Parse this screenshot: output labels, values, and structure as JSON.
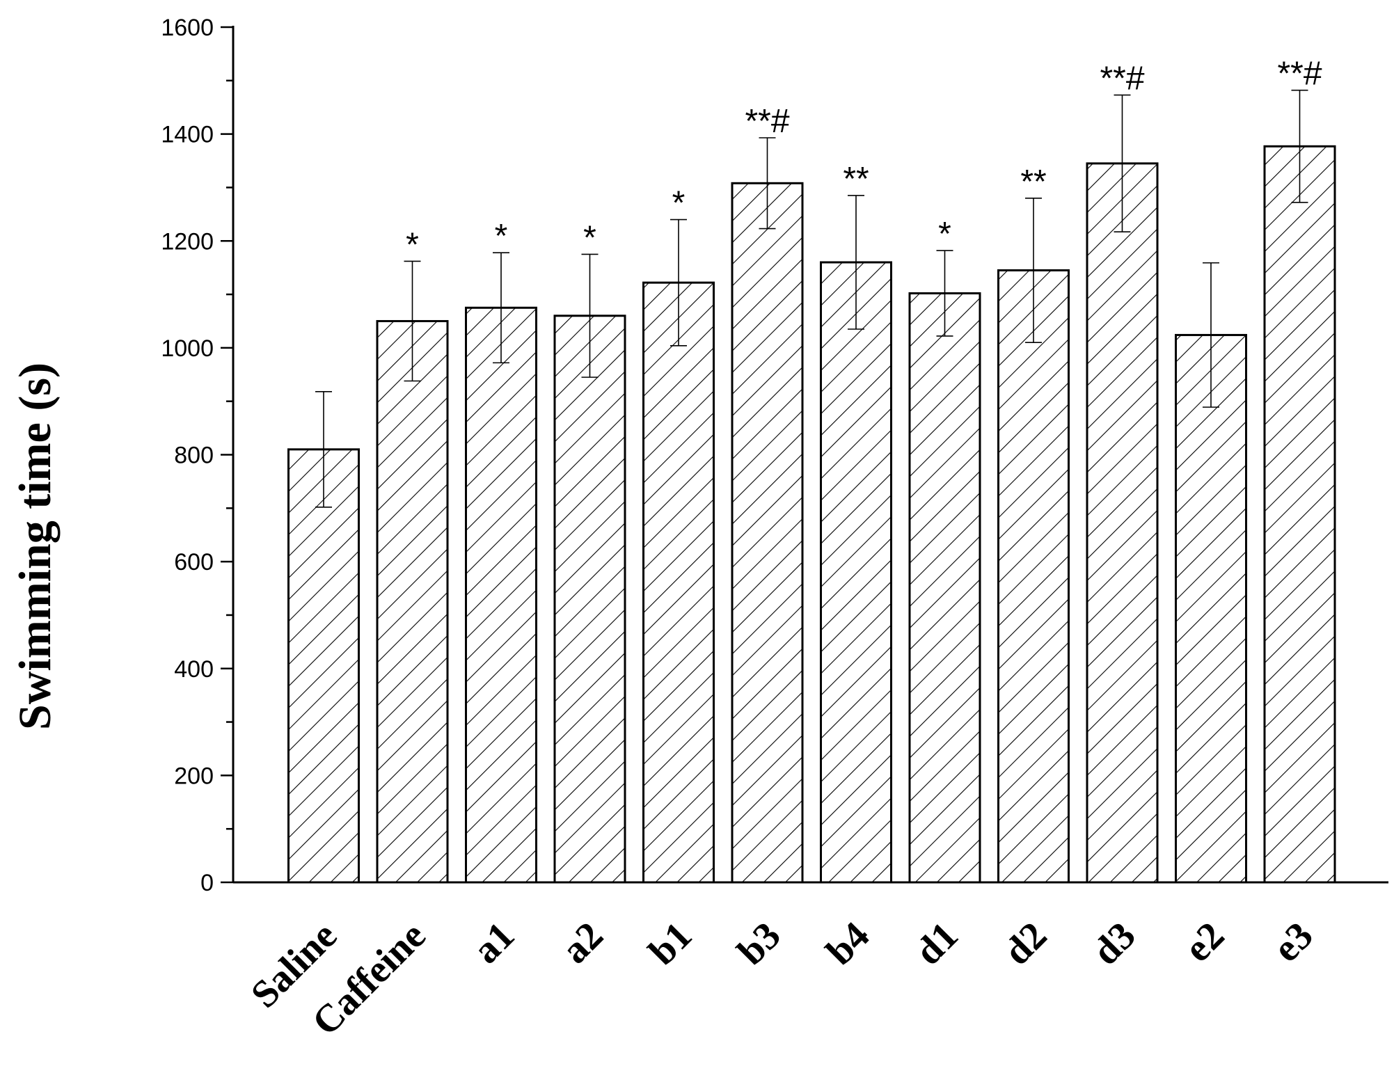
{
  "chart_data": {
    "type": "bar",
    "title": "",
    "xlabel": "",
    "ylabel": "Swimming time (s)",
    "ylim": [
      0,
      1600
    ],
    "yticks": [
      0,
      200,
      400,
      600,
      800,
      1000,
      1200,
      1400,
      1600
    ],
    "grid": false,
    "legend": "none",
    "bar_fill": "hatched",
    "colors": {
      "bar_stroke": "#000000",
      "hatch": "#000000",
      "background": "#ffffff"
    },
    "categories": [
      "Saline",
      "Caffeine",
      "a1",
      "a2",
      "b1",
      "b3",
      "b4",
      "d1",
      "d2",
      "d3",
      "e2",
      "e3"
    ],
    "values": [
      810,
      1050,
      1075,
      1060,
      1122,
      1308,
      1160,
      1102,
      1145,
      1345,
      1024,
      1377
    ],
    "errors": [
      108,
      112,
      103,
      115,
      118,
      85,
      125,
      80,
      135,
      128,
      135,
      105
    ],
    "significance": [
      "",
      "*",
      "*",
      "*",
      "*",
      "**#",
      "**",
      "*",
      "**",
      "**#",
      "",
      "**#"
    ]
  }
}
